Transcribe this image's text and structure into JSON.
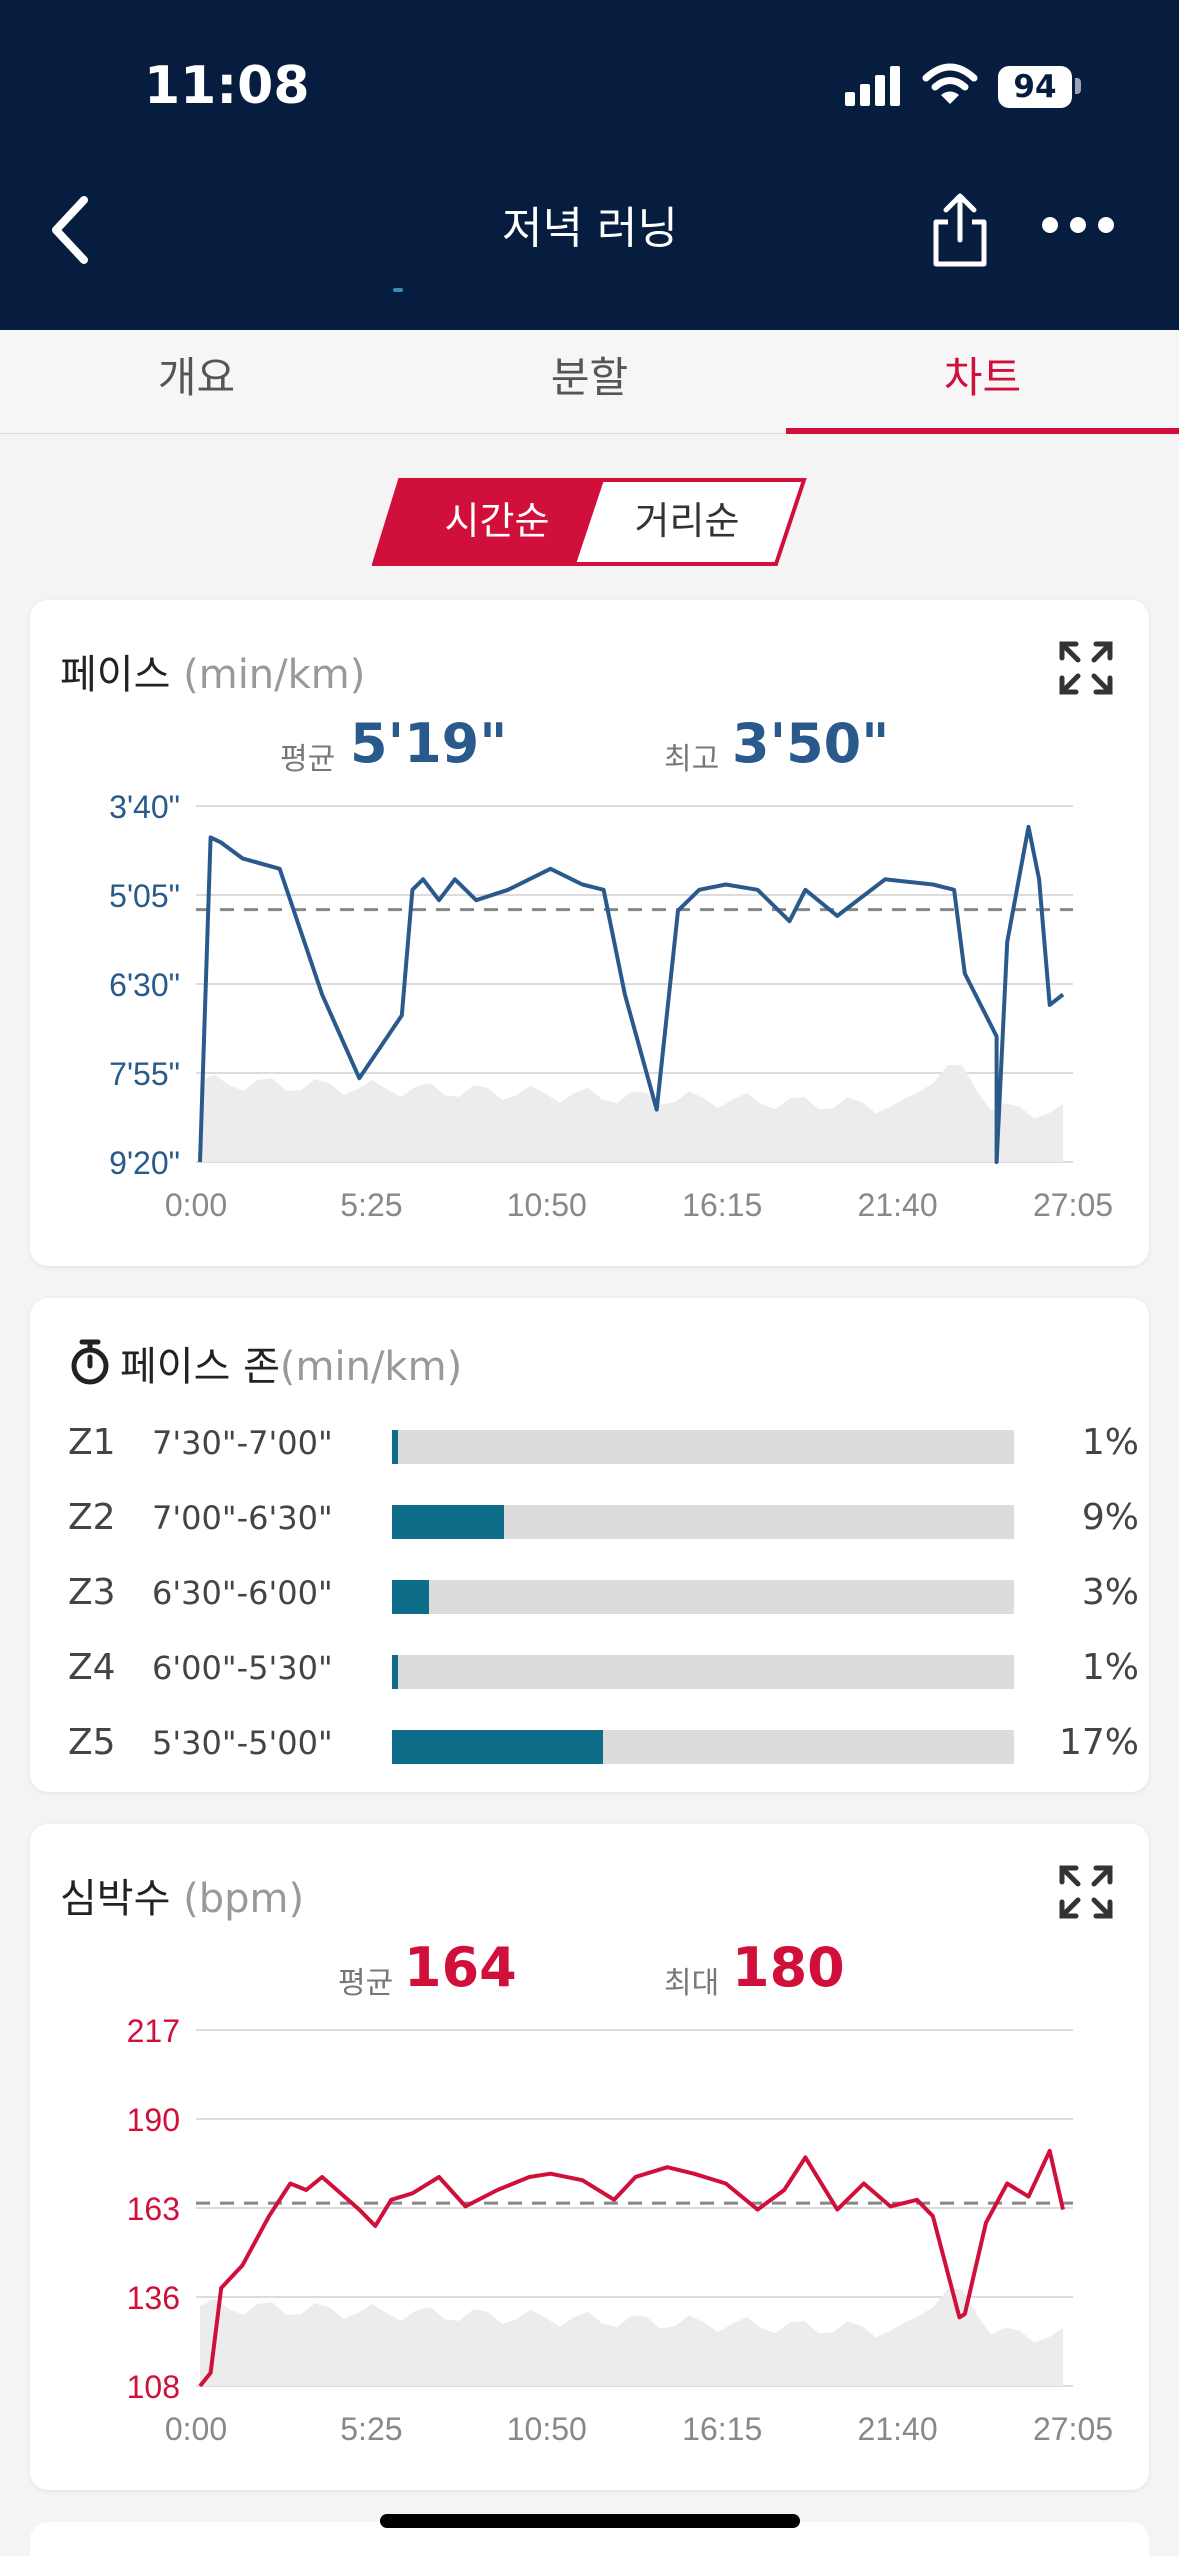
{
  "status": {
    "time": "11:08",
    "battery": "94"
  },
  "header": {
    "title": "저녁 러닝"
  },
  "tabs": [
    {
      "label": "개요"
    },
    {
      "label": "분할"
    },
    {
      "label": "차트"
    }
  ],
  "segment": {
    "time_label": "시간순",
    "distance_label": "거리순"
  },
  "pace_card": {
    "title": "페이스",
    "unit": "(min/km)",
    "avg_label": "평균",
    "avg_value": "5'19\"",
    "best_label": "최고",
    "best_value": "3'50\""
  },
  "zones_card": {
    "title": "페이스 존",
    "unit": "(min/km)",
    "zones": [
      {
        "id": "Z1",
        "range": "7'30\"-7'00\"",
        "pct": "1%",
        "fraction": 0.01
      },
      {
        "id": "Z2",
        "range": "7'00\"-6'30\"",
        "pct": "9%",
        "fraction": 0.09
      },
      {
        "id": "Z3",
        "range": "6'30\"-6'00\"",
        "pct": "3%",
        "fraction": 0.03
      },
      {
        "id": "Z4",
        "range": "6'00\"-5'30\"",
        "pct": "1%",
        "fraction": 0.01
      },
      {
        "id": "Z5",
        "range": "5'30\"-5'00\"",
        "pct": "17%",
        "fraction": 0.17
      }
    ]
  },
  "hr_card": {
    "title": "심박수",
    "unit": "(bpm)",
    "avg_label": "평균",
    "avg_value": "164",
    "max_label": "최대",
    "max_value": "180"
  },
  "colors": {
    "navy": "#061d3f",
    "red": "#d0103a",
    "pace": "#2a5a8c",
    "zone": "#0e6e8a"
  },
  "chart_data": [
    {
      "type": "line",
      "title": "",
      "xlabel": "",
      "ylabel": "",
      "x_ticks": [
        "0:00",
        "5:25",
        "10:50",
        "16:15",
        "21:40",
        "27:05"
      ],
      "y_ticks": [
        "3'40\"",
        "5'05\"",
        "6'30\"",
        "7'55\"",
        "9'20\""
      ],
      "ylim_seconds": [
        220,
        560
      ],
      "xlim_seconds": [
        0,
        1625
      ],
      "grid": true,
      "reference_line_seconds": 319,
      "series": [
        {
          "x": [
            0,
            20,
            40,
            80,
            150,
            230,
            300,
            380,
            400,
            420,
            450,
            480,
            520,
            580,
            660,
            720,
            760,
            800,
            860,
            900,
            940,
            990,
            1050,
            1110,
            1140,
            1200,
            1290,
            1380,
            1420,
            1440,
            1500,
            1500,
            1520,
            1560,
            1580,
            1600,
            1625
          ],
          "y": [
            560,
            250,
            255,
            270,
            280,
            400,
            480,
            420,
            300,
            290,
            310,
            290,
            310,
            300,
            280,
            295,
            300,
            400,
            510,
            320,
            300,
            295,
            300,
            330,
            300,
            325,
            290,
            295,
            300,
            380,
            440,
            560,
            350,
            240,
            290,
            410,
            400
          ]
        }
      ]
    },
    {
      "type": "line",
      "title": "",
      "xlabel": "",
      "ylabel": "",
      "x_ticks": [
        "0:00",
        "5:25",
        "10:50",
        "16:15",
        "21:40",
        "27:05"
      ],
      "y_ticks": [
        "217",
        "190",
        "163",
        "136",
        "108"
      ],
      "ylim": [
        108,
        217
      ],
      "xlim_seconds": [
        0,
        1625
      ],
      "grid": true,
      "reference_line": 164,
      "series": [
        {
          "x": [
            0,
            20,
            40,
            80,
            130,
            170,
            200,
            230,
            300,
            330,
            360,
            400,
            450,
            500,
            560,
            620,
            660,
            720,
            780,
            820,
            880,
            930,
            990,
            1050,
            1100,
            1140,
            1200,
            1250,
            1300,
            1350,
            1380,
            1430,
            1440,
            1480,
            1520,
            1560,
            1600,
            1625
          ],
          "y": [
            108,
            112,
            138,
            145,
            160,
            170,
            168,
            172,
            162,
            157,
            165,
            167,
            172,
            163,
            168,
            172,
            173,
            171,
            165,
            172,
            175,
            173,
            170,
            162,
            168,
            178,
            162,
            170,
            163,
            165,
            160,
            129,
            130,
            158,
            170,
            166,
            180,
            162
          ]
        }
      ]
    }
  ]
}
